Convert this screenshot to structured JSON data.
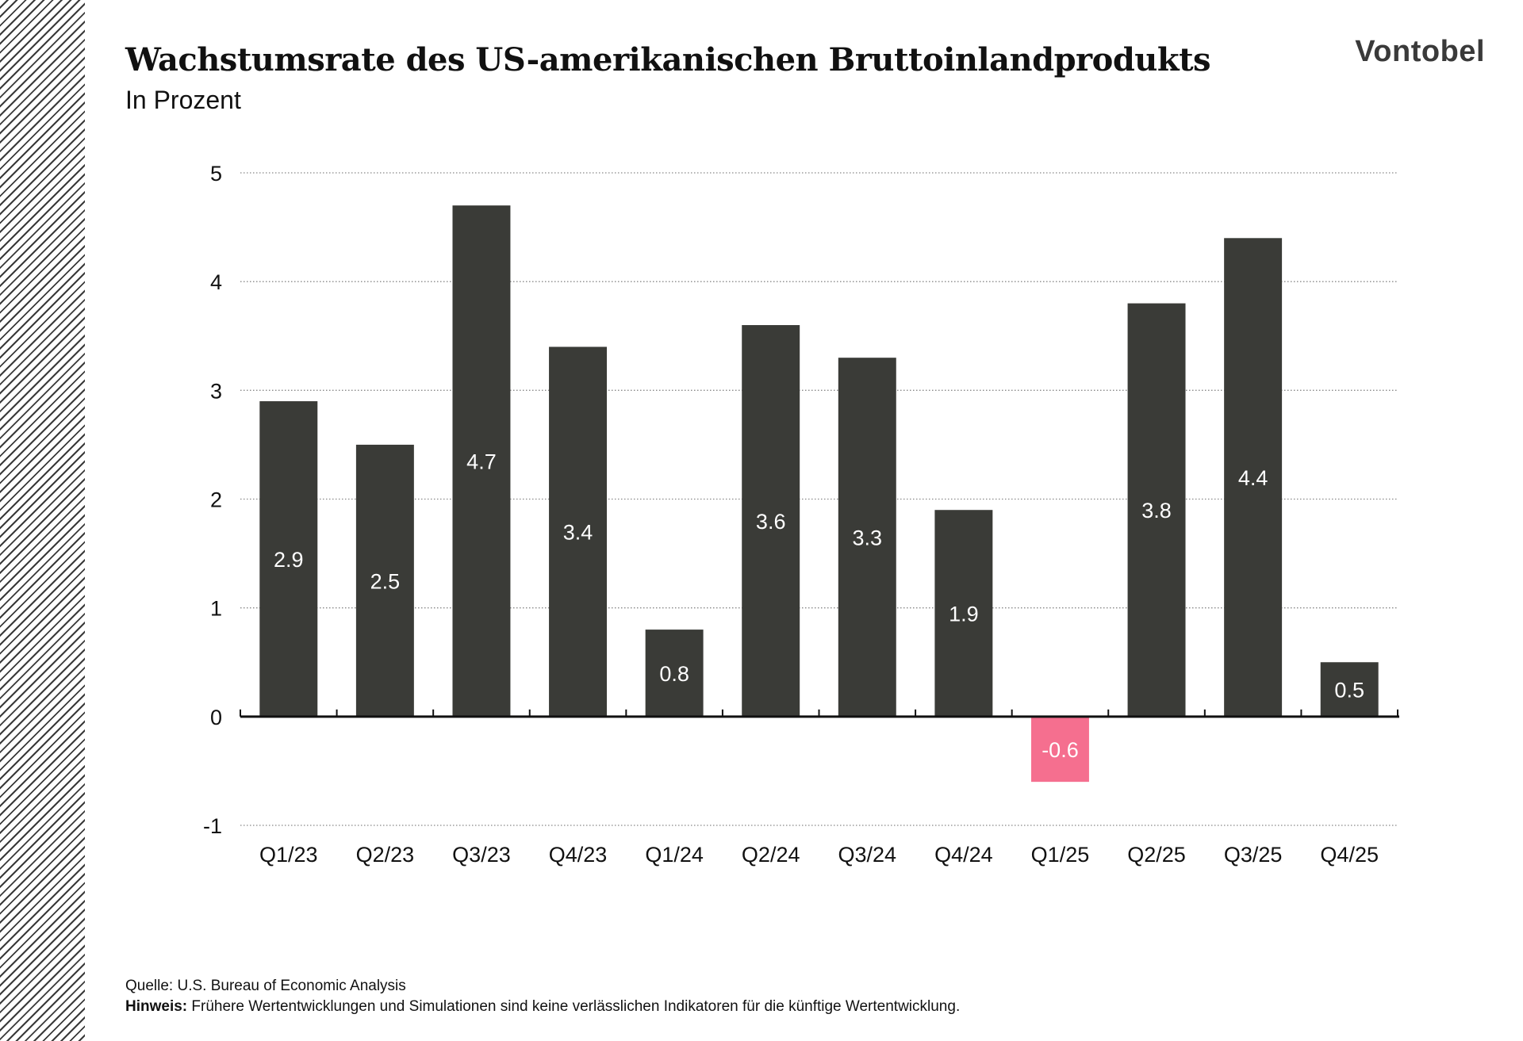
{
  "title": "Wachstumsrate des US-amerikanischen Bruttoinlandprodukts",
  "subtitle": "In Prozent",
  "logo": "Vontobel",
  "source": "Quelle: U.S. Bureau of Economic Analysis",
  "note_label": "Hinweis:",
  "note_text": " Frühere Wertentwicklungen und Simulationen sind keine verlässlichen Indikatoren für die künftige Wertentwicklung.",
  "colors": {
    "bar": "#3a3b37",
    "negative_bar": "#f56f8f",
    "bar_label": "#ffffff",
    "text": "#111111",
    "grid": "#888888"
  },
  "chart_data": {
    "type": "bar",
    "title": "Wachstumsrate des US-amerikanischen Bruttoinlandprodukts",
    "subtitle": "In Prozent",
    "xlabel": "",
    "ylabel": "",
    "categories": [
      "Q1/23",
      "Q2/23",
      "Q3/23",
      "Q4/23",
      "Q1/24",
      "Q2/24",
      "Q3/24",
      "Q4/24",
      "Q1/25",
      "Q2/25",
      "Q3/25",
      "Q4/25"
    ],
    "values": [
      2.9,
      2.5,
      4.7,
      3.4,
      0.8,
      3.6,
      3.3,
      1.9,
      -0.6,
      3.8,
      4.4,
      0.5
    ],
    "labels": [
      "2.9",
      "2.5",
      "4.7",
      "3.4",
      "0.8",
      "3.6",
      "3.3",
      "1.9",
      "-0.6",
      "3.8",
      "4.4",
      "0.5"
    ],
    "ylim": [
      -1,
      5
    ],
    "yticks": [
      "-1",
      "0",
      "1",
      "2",
      "3",
      "4",
      "5"
    ],
    "grid": true,
    "grid_style": "dotted",
    "legend": "none"
  }
}
